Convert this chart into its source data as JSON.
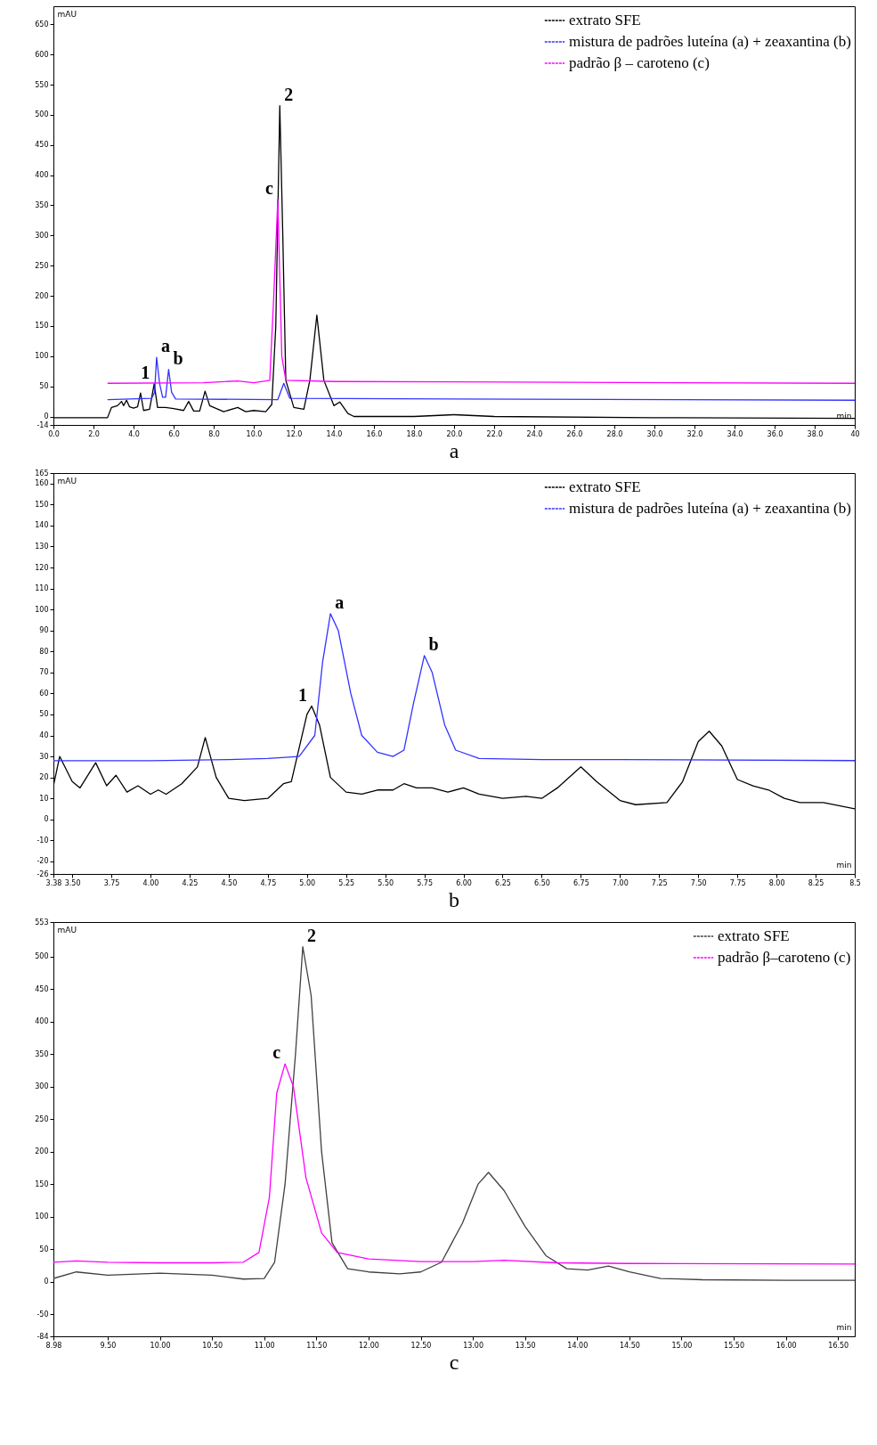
{
  "chart_data": [
    {
      "type": "line",
      "title": "a",
      "xlabel": "min",
      "ylabel": "mAU",
      "legend": "top right",
      "line_style": "solid",
      "marker": "none",
      "grid": false,
      "xlim": [
        0,
        40
      ],
      "ylim": [
        -14,
        680
      ],
      "xticks": [
        {
          "value": 0,
          "label": "0.0"
        },
        {
          "value": 2,
          "label": "2.0"
        },
        {
          "value": 4,
          "label": "4.0"
        },
        {
          "value": 6,
          "label": "6.0"
        },
        {
          "value": 8,
          "label": "8.0"
        },
        {
          "value": 10,
          "label": "10.0"
        },
        {
          "value": 12,
          "label": "12.0"
        },
        {
          "value": 14,
          "label": "14.0"
        },
        {
          "value": 16,
          "label": "16.0"
        },
        {
          "value": 18,
          "label": "18.0"
        },
        {
          "value": 20,
          "label": "20.0"
        },
        {
          "value": 22,
          "label": "22.0"
        },
        {
          "value": 24,
          "label": "24.0"
        },
        {
          "value": 26,
          "label": "26.0"
        },
        {
          "value": 28,
          "label": "28.0"
        },
        {
          "value": 30,
          "label": "30.0"
        },
        {
          "value": 32,
          "label": "32.0"
        },
        {
          "value": 34,
          "label": "34.0"
        },
        {
          "value": 36,
          "label": "36.0"
        },
        {
          "value": 38,
          "label": "38.0"
        },
        {
          "value": 40,
          "label": "40"
        }
      ],
      "yticks": [
        -14,
        0,
        50,
        100,
        150,
        200,
        250,
        300,
        350,
        400,
        450,
        500,
        550,
        600,
        650
      ],
      "series": [
        {
          "name": "extrato SFE",
          "color": "#000000",
          "x": [
            0,
            2.7,
            2.9,
            3.2,
            3.4,
            3.5,
            3.65,
            3.8,
            4.0,
            4.2,
            4.35,
            4.5,
            4.8,
            5.03,
            5.2,
            5.6,
            6.0,
            6.5,
            6.75,
            7.0,
            7.3,
            7.57,
            7.8,
            8.5,
            9.2,
            9.6,
            10.0,
            10.6,
            10.9,
            11.1,
            11.3,
            11.45,
            11.6,
            12.0,
            12.5,
            12.8,
            13.15,
            13.5,
            14.0,
            14.3,
            14.7,
            15.0,
            18.0,
            20.0,
            22.0,
            30.0,
            40.0
          ],
          "values": [
            -2,
            -2,
            15,
            18,
            25,
            18,
            27,
            16,
            14,
            16,
            39,
            10,
            12,
            54,
            15,
            15,
            13,
            10,
            25,
            9,
            9,
            42,
            18,
            8,
            15,
            8,
            10,
            8,
            20,
            150,
            515,
            300,
            60,
            15,
            12,
            60,
            168,
            60,
            18,
            24,
            5,
            0,
            0,
            3,
            0,
            -2,
            -3
          ]
        },
        {
          "name": "mistura de padrões luteína (a) + zeaxantina (b)",
          "color": "#3333ff",
          "x": [
            2.7,
            4.9,
            5.05,
            5.15,
            5.3,
            5.45,
            5.6,
            5.75,
            5.9,
            6.1,
            11.2,
            11.5,
            11.8,
            40
          ],
          "values": [
            28,
            30,
            40,
            98,
            55,
            32,
            32,
            78,
            40,
            29,
            28,
            55,
            30,
            27
          ]
        },
        {
          "name": "padrão β – caroteno (c)",
          "color": "#ff00ff",
          "x": [
            2.7,
            7.5,
            9.2,
            10.0,
            10.8,
            11.0,
            11.2,
            11.4,
            11.6,
            14.0,
            40
          ],
          "values": [
            55,
            56,
            59,
            56,
            60,
            200,
            360,
            100,
            60,
            58,
            55
          ]
        }
      ],
      "annotations": [
        {
          "text": "1",
          "x": 5.03,
          "y": 54
        },
        {
          "text": "a",
          "x": 5.15,
          "y": 98
        },
        {
          "text": "b",
          "x": 5.75,
          "y": 78
        },
        {
          "text": "c",
          "x": 11.2,
          "y": 360
        },
        {
          "text": "2",
          "x": 11.3,
          "y": 515
        }
      ]
    },
    {
      "type": "line",
      "title": "b",
      "xlabel": "min",
      "ylabel": "mAU",
      "legend": "top right",
      "line_style": "solid",
      "marker": "none",
      "grid": false,
      "xlim": [
        3.38,
        8.5
      ],
      "ylim": [
        -26,
        165
      ],
      "xticks": [
        3.38,
        {
          "value": 3.5,
          "label": "3.50"
        },
        3.75,
        {
          "value": 4,
          "label": "4.00"
        },
        4.25,
        {
          "value": 4.5,
          "label": "4.50"
        },
        4.75,
        {
          "value": 5,
          "label": "5.00"
        },
        5.25,
        {
          "value": 5.5,
          "label": "5.50"
        },
        5.75,
        {
          "value": 6,
          "label": "6.00"
        },
        6.25,
        {
          "value": 6.5,
          "label": "6.50"
        },
        6.75,
        {
          "value": 7,
          "label": "7.00"
        },
        7.25,
        {
          "value": 7.5,
          "label": "7.50"
        },
        7.75,
        {
          "value": 8,
          "label": "8.00"
        },
        8.25,
        8.5
      ],
      "yticks": [
        -26,
        -20,
        -10,
        0,
        10,
        20,
        30,
        40,
        50,
        60,
        70,
        80,
        90,
        100,
        110,
        120,
        130,
        140,
        150,
        160,
        165
      ],
      "series": [
        {
          "name": "extrato SFE",
          "color": "#000000",
          "x": [
            3.38,
            3.42,
            3.5,
            3.55,
            3.65,
            3.72,
            3.78,
            3.85,
            3.92,
            4.0,
            4.05,
            4.1,
            4.2,
            4.3,
            4.35,
            4.42,
            4.5,
            4.6,
            4.75,
            4.85,
            4.9,
            5.0,
            5.03,
            5.08,
            5.15,
            5.25,
            5.35,
            5.45,
            5.55,
            5.62,
            5.7,
            5.8,
            5.9,
            6.0,
            6.1,
            6.25,
            6.4,
            6.5,
            6.6,
            6.75,
            6.85,
            7.0,
            7.1,
            7.3,
            7.4,
            7.5,
            7.57,
            7.65,
            7.75,
            7.85,
            7.95,
            8.05,
            8.15,
            8.3,
            8.5
          ],
          "values": [
            16,
            30,
            18,
            15,
            27,
            16,
            21,
            13,
            16,
            12,
            14,
            12,
            17,
            25,
            39,
            20,
            10,
            9,
            10,
            17,
            18,
            50,
            54,
            45,
            20,
            13,
            12,
            14,
            14,
            17,
            15,
            15,
            13,
            15,
            12,
            10,
            11,
            10,
            15,
            25,
            18,
            9,
            7,
            8,
            18,
            37,
            42,
            35,
            19,
            16,
            14,
            10,
            8,
            8,
            5
          ]
        },
        {
          "name": "mistura de padrões luteína (a) + zeaxantina (b)",
          "color": "#3333ff",
          "x": [
            3.38,
            4.0,
            4.5,
            4.75,
            4.95,
            5.05,
            5.1,
            5.15,
            5.2,
            5.28,
            5.35,
            5.45,
            5.55,
            5.62,
            5.68,
            5.75,
            5.8,
            5.88,
            5.95,
            6.1,
            6.5,
            7.0,
            8.5
          ],
          "values": [
            28,
            28,
            28.5,
            29,
            30,
            40,
            75,
            98,
            90,
            60,
            40,
            32,
            30,
            33,
            55,
            78,
            70,
            45,
            33,
            29,
            28.5,
            28.5,
            28
          ]
        }
      ],
      "annotations": [
        {
          "text": "1",
          "x": 5.03,
          "y": 54
        },
        {
          "text": "a",
          "x": 5.15,
          "y": 98
        },
        {
          "text": "b",
          "x": 5.75,
          "y": 78
        }
      ]
    },
    {
      "type": "line",
      "title": "c",
      "xlabel": "min",
      "ylabel": "mAU",
      "legend": "top right",
      "line_style": "solid",
      "marker": "none",
      "grid": false,
      "xlim": [
        8.98,
        16.66
      ],
      "ylim": [
        -84,
        553
      ],
      "xticks": [
        8.98,
        {
          "value": 9.5,
          "label": "9.50"
        },
        {
          "value": 10,
          "label": "10.00"
        },
        {
          "value": 10.5,
          "label": "10.50"
        },
        {
          "value": 11,
          "label": "11.00"
        },
        {
          "value": 11.5,
          "label": "11.50"
        },
        {
          "value": 12,
          "label": "12.00"
        },
        {
          "value": 12.5,
          "label": "12.50"
        },
        {
          "value": 13,
          "label": "13.00"
        },
        {
          "value": 13.5,
          "label": "13.50"
        },
        {
          "value": 14,
          "label": "14.00"
        },
        {
          "value": 14.5,
          "label": "14.50"
        },
        {
          "value": 15,
          "label": "15.00"
        },
        {
          "value": 15.5,
          "label": "15.50"
        },
        {
          "value": 16,
          "label": "16.00"
        },
        {
          "value": 16.5,
          "label": "16.50"
        }
      ],
      "yticks": [
        -84,
        -50,
        0,
        50,
        100,
        150,
        200,
        250,
        300,
        350,
        400,
        450,
        500,
        553
      ],
      "series": [
        {
          "name": "extrato SFE",
          "color": "#404040",
          "x": [
            8.98,
            9.2,
            9.5,
            10.0,
            10.5,
            10.8,
            11.0,
            11.1,
            11.2,
            11.3,
            11.37,
            11.45,
            11.55,
            11.65,
            11.8,
            12.0,
            12.3,
            12.5,
            12.7,
            12.9,
            13.05,
            13.15,
            13.3,
            13.5,
            13.7,
            13.9,
            14.1,
            14.3,
            14.5,
            14.8,
            15.2,
            16.0,
            16.66
          ],
          "values": [
            5,
            15,
            10,
            13,
            10,
            4,
            5,
            30,
            150,
            350,
            515,
            440,
            200,
            60,
            20,
            15,
            12,
            15,
            30,
            90,
            150,
            168,
            140,
            85,
            40,
            20,
            18,
            24,
            15,
            5,
            3,
            2,
            2
          ]
        },
        {
          "name": "padrão β–caroteno (c)",
          "color": "#ff00ff",
          "x": [
            8.98,
            9.2,
            9.5,
            10.0,
            10.5,
            10.8,
            10.95,
            11.05,
            11.12,
            11.2,
            11.28,
            11.4,
            11.55,
            11.7,
            12.0,
            12.5,
            13.0,
            13.3,
            13.8,
            14.5,
            16.66
          ],
          "values": [
            30,
            32,
            30,
            29,
            29,
            30,
            45,
            130,
            290,
            335,
            300,
            160,
            75,
            45,
            35,
            31,
            31,
            33,
            29,
            28,
            27
          ]
        }
      ],
      "annotations": [
        {
          "text": "2",
          "x": 11.37,
          "y": 515
        },
        {
          "text": "c",
          "x": 11.2,
          "y": 335
        }
      ]
    }
  ]
}
